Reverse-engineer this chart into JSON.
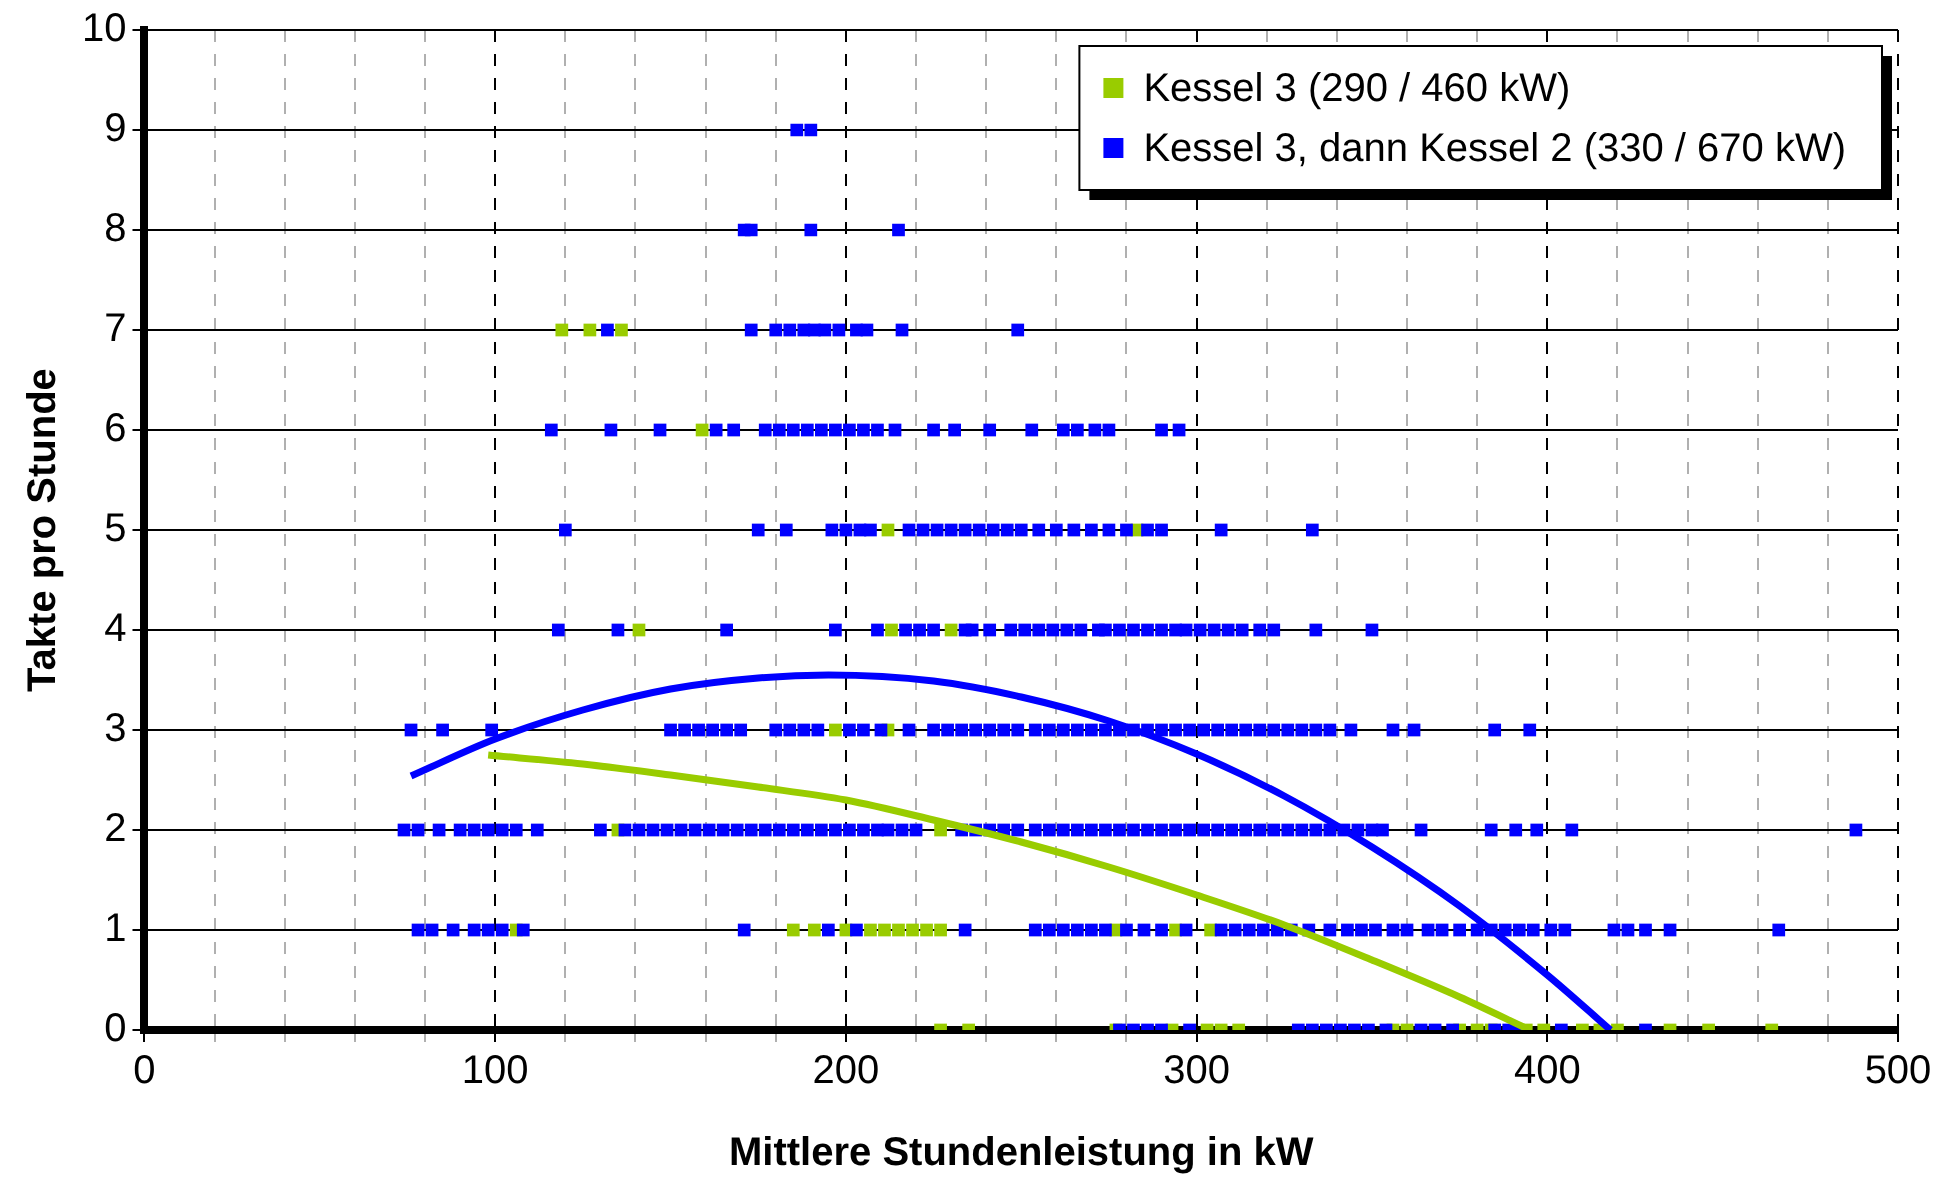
{
  "chart_data": {
    "type": "scatter",
    "xlabel": "Mittlere Stundenleistung in kW",
    "ylabel": "Takte pro Stunde",
    "marker": "square",
    "grid": true,
    "legend": "top right",
    "xlim": [
      0,
      500
    ],
    "xticks": [
      0,
      {
        "value": 20,
        "label": null
      },
      {
        "value": 40,
        "label": null
      },
      {
        "value": 60,
        "label": null
      },
      {
        "value": 80,
        "label": null
      },
      100,
      {
        "value": 120,
        "label": null
      },
      {
        "value": 140,
        "label": null
      },
      {
        "value": 160,
        "label": null
      },
      {
        "value": 180,
        "label": null
      },
      200,
      {
        "value": 220,
        "label": null
      },
      {
        "value": 240,
        "label": null
      },
      {
        "value": 260,
        "label": null
      },
      {
        "value": 280,
        "label": null
      },
      300,
      {
        "value": 320,
        "label": null
      },
      {
        "value": 340,
        "label": null
      },
      {
        "value": 360,
        "label": null
      },
      {
        "value": 380,
        "label": null
      },
      400,
      {
        "value": 420,
        "label": null
      },
      {
        "value": 440,
        "label": null
      },
      {
        "value": 460,
        "label": null
      },
      {
        "value": 480,
        "label": null
      },
      500
    ],
    "ylim": [
      0,
      10
    ],
    "yticks": [
      0,
      1,
      2,
      3,
      4,
      5,
      6,
      7,
      8,
      9,
      10
    ],
    "series": [
      {
        "name": "Kessel 3 (290 / 460 kW)",
        "color": "#99cc00",
        "x": [
          119,
          127,
          136,
          159,
          212,
          283,
          141,
          213,
          230,
          197,
          212,
          135,
          227,
          106,
          185,
          191,
          200,
          207,
          211,
          215,
          219,
          223,
          227,
          277,
          294,
          304,
          227,
          235,
          277,
          293,
          303,
          307,
          312,
          356,
          360,
          375,
          380,
          384,
          394,
          399,
          410,
          415,
          420,
          435,
          446,
          464
        ],
        "values": [
          7,
          7,
          7,
          6,
          5,
          5,
          4,
          4,
          4,
          3,
          3,
          2,
          2,
          1,
          1,
          1,
          1,
          1,
          1,
          1,
          1,
          1,
          1,
          1,
          1,
          1,
          0,
          0,
          0,
          0,
          0,
          0,
          0,
          0,
          0,
          0,
          0,
          0,
          0,
          0,
          0,
          0,
          0,
          0,
          0,
          0
        ]
      },
      {
        "name": "Kessel 3, dann Kessel 2 (330 / 670 kW)",
        "color": "#0000ff",
        "x": [
          186,
          190,
          171,
          173,
          190,
          215,
          132,
          173,
          180,
          184,
          188,
          191,
          194,
          198,
          203,
          206,
          216,
          249,
          116,
          133,
          147,
          163,
          168,
          177,
          181,
          185,
          189,
          193,
          197,
          201,
          205,
          209,
          214,
          225,
          231,
          241,
          253,
          262,
          266,
          271,
          275,
          290,
          295,
          120,
          175,
          183,
          196,
          200,
          204,
          207,
          218,
          222,
          226,
          230,
          234,
          238,
          242,
          246,
          250,
          255,
          260,
          265,
          270,
          275,
          280,
          286,
          290,
          307,
          333,
          118,
          135,
          166,
          197,
          209,
          217,
          221,
          225,
          234,
          236,
          241,
          247,
          251,
          255,
          259,
          263,
          267,
          272,
          274,
          278,
          282,
          286,
          290,
          294,
          297,
          301,
          305,
          309,
          313,
          318,
          322,
          334,
          350,
          76,
          85,
          99,
          150,
          154,
          158,
          162,
          166,
          170,
          180,
          184,
          188,
          192,
          201,
          205,
          210,
          218,
          225,
          229,
          233,
          237,
          241,
          245,
          249,
          254,
          258,
          262,
          266,
          270,
          274,
          278,
          282,
          286,
          290,
          294,
          298,
          302,
          306,
          310,
          314,
          318,
          322,
          326,
          330,
          334,
          338,
          344,
          356,
          362,
          385,
          395,
          74,
          78,
          84,
          90,
          94,
          98,
          102,
          106,
          112,
          130,
          137,
          141,
          145,
          149,
          153,
          157,
          161,
          165,
          169,
          173,
          177,
          181,
          185,
          189,
          193,
          197,
          201,
          205,
          209,
          212,
          216,
          220,
          233,
          237,
          241,
          245,
          249,
          254,
          258,
          262,
          266,
          270,
          274,
          278,
          282,
          286,
          290,
          294,
          298,
          302,
          306,
          310,
          314,
          318,
          322,
          326,
          330,
          334,
          338,
          342,
          346,
          350,
          353,
          364,
          384,
          391,
          397,
          407,
          488,
          78,
          82,
          88,
          94,
          98,
          102,
          108,
          171,
          195,
          203,
          234,
          254,
          258,
          262,
          266,
          270,
          274,
          280,
          285,
          290,
          297,
          307,
          311,
          315,
          319,
          323,
          327,
          332,
          338,
          343,
          347,
          351,
          356,
          360,
          366,
          370,
          375,
          380,
          384,
          388,
          392,
          396,
          401,
          405,
          419,
          423,
          428,
          435,
          466,
          278,
          282,
          286,
          290,
          298,
          329,
          333,
          337,
          341,
          345,
          349,
          354,
          364,
          368,
          373,
          385,
          389,
          391,
          404,
          428
        ],
        "values": [
          9,
          9,
          8,
          8,
          8,
          8,
          7,
          7,
          7,
          7,
          7,
          7,
          7,
          7,
          7,
          7,
          7,
          7,
          6,
          6,
          6,
          6,
          6,
          6,
          6,
          6,
          6,
          6,
          6,
          6,
          6,
          6,
          6,
          6,
          6,
          6,
          6,
          6,
          6,
          6,
          6,
          6,
          6,
          5,
          5,
          5,
          5,
          5,
          5,
          5,
          5,
          5,
          5,
          5,
          5,
          5,
          5,
          5,
          5,
          5,
          5,
          5,
          5,
          5,
          5,
          5,
          5,
          5,
          5,
          4,
          4,
          4,
          4,
          4,
          4,
          4,
          4,
          4,
          4,
          4,
          4,
          4,
          4,
          4,
          4,
          4,
          4,
          4,
          4,
          4,
          4,
          4,
          4,
          4,
          4,
          4,
          4,
          4,
          4,
          4,
          4,
          4,
          3,
          3,
          3,
          3,
          3,
          3,
          3,
          3,
          3,
          3,
          3,
          3,
          3,
          3,
          3,
          3,
          3,
          3,
          3,
          3,
          3,
          3,
          3,
          3,
          3,
          3,
          3,
          3,
          3,
          3,
          3,
          3,
          3,
          3,
          3,
          3,
          3,
          3,
          3,
          3,
          3,
          3,
          3,
          3,
          3,
          3,
          3,
          3,
          3,
          3,
          3,
          2,
          2,
          2,
          2,
          2,
          2,
          2,
          2,
          2,
          2,
          2,
          2,
          2,
          2,
          2,
          2,
          2,
          2,
          2,
          2,
          2,
          2,
          2,
          2,
          2,
          2,
          2,
          2,
          2,
          2,
          2,
          2,
          2,
          2,
          2,
          2,
          2,
          2,
          2,
          2,
          2,
          2,
          2,
          2,
          2,
          2,
          2,
          2,
          2,
          2,
          2,
          2,
          2,
          2,
          2,
          2,
          2,
          2,
          2,
          2,
          2,
          2,
          2,
          2,
          2,
          2,
          2,
          2,
          2,
          1,
          1,
          1,
          1,
          1,
          1,
          1,
          1,
          1,
          1,
          1,
          1,
          1,
          1,
          1,
          1,
          1,
          1,
          1,
          1,
          1,
          1,
          1,
          1,
          1,
          1,
          1,
          1,
          1,
          1,
          1,
          1,
          1,
          1,
          1,
          1,
          1,
          1,
          1,
          1,
          1,
          1,
          1,
          1,
          1,
          1,
          1,
          1,
          1,
          0,
          0,
          0,
          0,
          0,
          0,
          0,
          0,
          0,
          0,
          0,
          0,
          0,
          0,
          0,
          0,
          0,
          0,
          0,
          0
        ]
      },
      {
        "color": "#99cc00",
        "type": "line",
        "marker": "none",
        "x": [
          98,
          125,
          150,
          175,
          200,
          225,
          250,
          275,
          300,
          325,
          350,
          375,
          395
        ],
        "values": [
          2.75,
          2.66,
          2.55,
          2.43,
          2.3,
          2.1,
          1.88,
          1.63,
          1.35,
          1.05,
          0.7,
          0.33,
          0
        ]
      },
      {
        "color": "#0000ff",
        "type": "line",
        "marker": "none",
        "x": [
          76,
          100,
          125,
          150,
          175,
          195,
          225,
          250,
          275,
          300,
          325,
          350,
          375,
          400,
          418
        ],
        "values": [
          2.54,
          2.91,
          3.2,
          3.41,
          3.52,
          3.55,
          3.49,
          3.33,
          3.09,
          2.76,
          2.34,
          1.83,
          1.24,
          0.55,
          0
        ]
      }
    ]
  }
}
